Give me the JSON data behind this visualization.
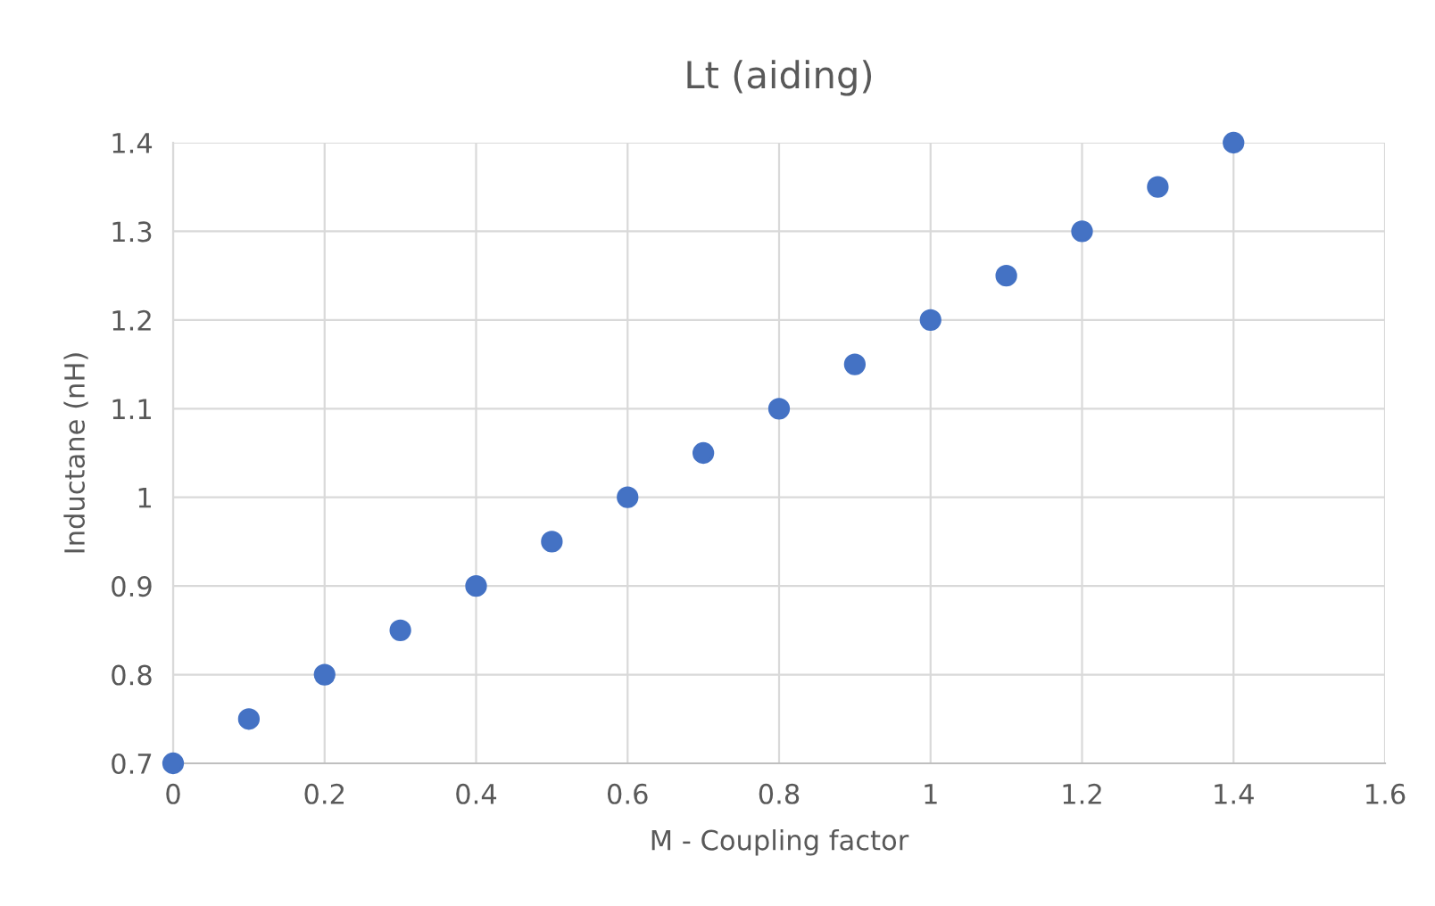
{
  "chart_data": {
    "type": "scatter",
    "title": "Lt (aiding)",
    "xlabel": "M - Coupling factor",
    "ylabel": "Inductane (nH)",
    "x": [
      0,
      0.1,
      0.2,
      0.3,
      0.4,
      0.5,
      0.6,
      0.7,
      0.8,
      0.9,
      1,
      1.1,
      1.2,
      1.3,
      1.4
    ],
    "series": [
      {
        "color": "#4472c4",
        "values": [
          0.7,
          0.75,
          0.8,
          0.85,
          0.9,
          0.95,
          1,
          1.05,
          1.1,
          1.15,
          1.2,
          1.25,
          1.3,
          1.35,
          1.4
        ]
      }
    ],
    "xlim": [
      0,
      1.6
    ],
    "ylim": [
      0.7,
      1.4
    ],
    "xticks": [
      0,
      0.2,
      0.4,
      0.6,
      0.8,
      1,
      1.2,
      1.4,
      1.6
    ],
    "yticks": [
      0.7,
      0.8,
      0.9,
      1,
      1.1,
      1.2,
      1.3,
      1.4
    ],
    "grid": true,
    "marker": "circle"
  }
}
